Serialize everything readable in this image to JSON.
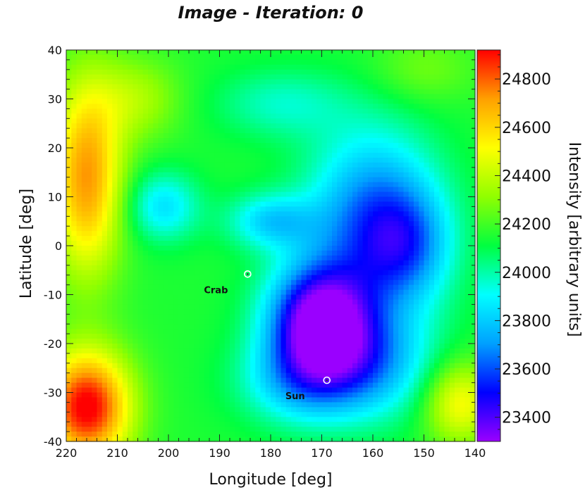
{
  "chart_data": {
    "type": "heatmap",
    "title": "Image - Iteration: 0",
    "xlabel": "Longitude [deg]",
    "ylabel": "Latitude [deg]",
    "xlim": [
      220,
      140
    ],
    "ylim": [
      -40,
      40
    ],
    "x_ticks": [
      "220",
      "210",
      "200",
      "190",
      "180",
      "170",
      "160",
      "150",
      "140"
    ],
    "y_ticks": [
      "40",
      "30",
      "20",
      "10",
      "0",
      "-10",
      "-20",
      "-30",
      "-40"
    ],
    "colorbar": {
      "label": "Intensity [arbitrary units]",
      "range": [
        23300,
        24920
      ],
      "ticks": [
        "23400",
        "23600",
        "23800",
        "24000",
        "24200",
        "24400",
        "24600",
        "24800"
      ],
      "colormap": [
        "#9a00ff",
        "#0000ff",
        "#00a0ff",
        "#00ffff",
        "#00ff40",
        "#90ff00",
        "#ffff00",
        "#ffa000",
        "#ff0000"
      ]
    },
    "baseline": 24150,
    "features": [
      {
        "lon": 170.5,
        "lat": -15,
        "amp": -800,
        "sx": 7,
        "sy": 8
      },
      {
        "lon": 163,
        "lat": -24,
        "amp": -450,
        "sx": 10,
        "sy": 8
      },
      {
        "lon": 160,
        "lat": 5,
        "amp": -520,
        "sx": 9,
        "sy": 13
      },
      {
        "lon": 153,
        "lat": 0,
        "amp": -300,
        "sx": 6,
        "sy": 8
      },
      {
        "lon": 180,
        "lat": 5,
        "amp": -320,
        "sx": 6,
        "sy": 4
      },
      {
        "lon": 201,
        "lat": 8,
        "amp": -300,
        "sx": 5,
        "sy": 5
      },
      {
        "lon": 175,
        "lat": -28,
        "amp": -250,
        "sx": 8,
        "sy": 6
      },
      {
        "lon": 178,
        "lat": 29,
        "amp": -180,
        "sx": 9,
        "sy": 5
      },
      {
        "lon": 216,
        "lat": 14,
        "amp": 580,
        "sx": 5,
        "sy": 14
      },
      {
        "lon": 216,
        "lat": -33,
        "amp": 800,
        "sx": 6,
        "sy": 8
      },
      {
        "lon": 143,
        "lat": -32,
        "amp": 380,
        "sx": 5,
        "sy": 6
      },
      {
        "lon": 206,
        "lat": 30,
        "amp": 200,
        "sx": 6,
        "sy": 6
      },
      {
        "lon": 150,
        "lat": 36,
        "amp": 120,
        "sx": 7,
        "sy": 5
      }
    ],
    "sources": [
      {
        "name": "Crab",
        "lon": 184.5,
        "lat": -5.8
      },
      {
        "name": "Sun",
        "lon": 169,
        "lat": -27.5
      }
    ]
  }
}
